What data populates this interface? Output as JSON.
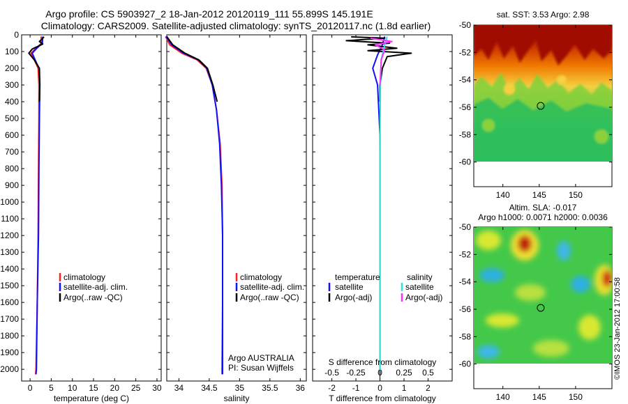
{
  "title_line1": "Argo profile: CS 5903927_2 18-Jan-2012 20120119_111 55.899S 145.191E",
  "title_line2": "Climatology: CARS2009. Satellite-adjusted climatology: synTS_20120117.nc (1.8d earlier)",
  "watermark": "©IMOS 23-Jan-2012 17:00:58",
  "colors": {
    "climatology": "#ff2020",
    "satellite": "#1010ff",
    "argo": "#000000",
    "sat_salinity": "#33e0e0",
    "argo_salinity": "#ff30ff"
  },
  "chart_data": [
    {
      "type": "line",
      "id": "temperature",
      "xlabel": "temperature (deg C)",
      "ylabel": "",
      "xlim": [
        -2,
        31
      ],
      "ylim": [
        2070,
        0
      ],
      "xticks": [
        0,
        5,
        10,
        15,
        20,
        25,
        30
      ],
      "yticks": [
        0,
        100,
        200,
        300,
        400,
        500,
        600,
        700,
        800,
        900,
        1000,
        1100,
        1200,
        1300,
        1400,
        1500,
        1600,
        1700,
        1800,
        1900,
        2000
      ],
      "legend": [
        "climatology",
        "satellite-adj. clim.",
        "Argo(..raw -QC)"
      ],
      "series": [
        {
          "name": "climatology",
          "color": "#ff2020",
          "points": [
            [
              2.6,
              10
            ],
            [
              2.7,
              50
            ],
            [
              1.4,
              80
            ],
            [
              0.2,
              110
            ],
            [
              1.0,
              150
            ],
            [
              1.9,
              200
            ],
            [
              2.1,
              300
            ],
            [
              2.1,
              500
            ],
            [
              2.0,
              800
            ],
            [
              1.9,
              1200
            ],
            [
              1.7,
              1600
            ],
            [
              1.4,
              2000
            ],
            [
              1.3,
              2030
            ]
          ]
        },
        {
          "name": "satellite-adj. clim.",
          "color": "#1010ff",
          "points": [
            [
              3.0,
              10
            ],
            [
              2.9,
              50
            ],
            [
              1.6,
              80
            ],
            [
              0.5,
              110
            ],
            [
              1.2,
              150
            ],
            [
              2.1,
              200
            ],
            [
              2.3,
              300
            ],
            [
              2.2,
              500
            ],
            [
              2.1,
              800
            ],
            [
              2.0,
              1200
            ],
            [
              1.7,
              1600
            ],
            [
              1.5,
              2000
            ],
            [
              1.4,
              2030
            ]
          ]
        },
        {
          "name": "Argo(..raw -QC)",
          "color": "#000000",
          "points": [
            [
              3.3,
              12
            ],
            [
              2.2,
              40
            ],
            [
              3.0,
              55
            ],
            [
              0.5,
              85
            ],
            [
              -0.3,
              110
            ],
            [
              1.0,
              150
            ],
            [
              2.2,
              200
            ],
            [
              2.3,
              300
            ],
            [
              2.2,
              400
            ]
          ]
        }
      ]
    },
    {
      "type": "line",
      "id": "salinity",
      "xlabel": "salinity",
      "ylabel": "",
      "xlim": [
        33.8,
        36.1
      ],
      "ylim": [
        2070,
        0
      ],
      "xticks": [
        34,
        34.5,
        35,
        35.5,
        36
      ],
      "legend": [
        "climatology",
        "satellite-adj. clim.",
        "Argo(..raw -QC)"
      ],
      "annotation": [
        "Argo AUSTRALIA",
        "PI: Susan Wijffels"
      ],
      "series": [
        {
          "name": "climatology",
          "color": "#ff2020",
          "points": [
            [
              33.78,
              10
            ],
            [
              33.85,
              60
            ],
            [
              34.05,
              110
            ],
            [
              34.3,
              150
            ],
            [
              34.45,
              200
            ],
            [
              34.55,
              300
            ],
            [
              34.62,
              450
            ],
            [
              34.68,
              650
            ],
            [
              34.71,
              900
            ],
            [
              34.72,
              1200
            ],
            [
              34.72,
              1600
            ],
            [
              34.71,
              2000
            ],
            [
              34.71,
              2030
            ]
          ]
        },
        {
          "name": "satellite-adj. clim.",
          "color": "#1010ff",
          "points": [
            [
              33.79,
              10
            ],
            [
              33.88,
              60
            ],
            [
              34.08,
              110
            ],
            [
              34.32,
              150
            ],
            [
              34.46,
              200
            ],
            [
              34.55,
              300
            ],
            [
              34.62,
              450
            ],
            [
              34.67,
              650
            ],
            [
              34.7,
              900
            ],
            [
              34.72,
              1200
            ],
            [
              34.72,
              1600
            ],
            [
              34.72,
              2000
            ],
            [
              34.72,
              2030
            ]
          ]
        },
        {
          "name": "Argo(..raw -QC)",
          "color": "#000000",
          "points": [
            [
              33.8,
              10
            ],
            [
              33.9,
              60
            ],
            [
              34.1,
              110
            ],
            [
              34.33,
              150
            ],
            [
              34.47,
              200
            ],
            [
              34.56,
              300
            ],
            [
              34.63,
              400
            ]
          ]
        }
      ]
    },
    {
      "type": "line",
      "id": "difference",
      "xlabel": "T difference from climatology",
      "xlabel2": "S difference from climatology",
      "xlim": [
        -2.8,
        3
      ],
      "ylim": [
        2070,
        0
      ],
      "xticks": [
        -2,
        -1,
        0,
        1,
        2
      ],
      "xticks2": [
        -0.5,
        -0.25,
        0,
        0.25,
        0.5
      ],
      "legend_temperature_title": "temperature",
      "legend_salinity_title": "salinity",
      "legend": [
        "satellite",
        "Argo(-adj)",
        "satellite",
        "Argo(-adj)"
      ],
      "series": [
        {
          "name": "satellite",
          "color": "#1010ff",
          "points": [
            [
              0.2,
              10
            ],
            [
              0.1,
              60
            ],
            [
              -0.1,
              120
            ],
            [
              -0.3,
              200
            ],
            [
              -0.1,
              300
            ],
            [
              0,
              600
            ],
            [
              0,
              1000
            ],
            [
              0,
              2030
            ]
          ]
        },
        {
          "name": "Argo(-adj)",
          "color": "#000000",
          "points": [
            [
              -1.2,
              12
            ],
            [
              0.2,
              20
            ],
            [
              -1.4,
              35
            ],
            [
              0.4,
              50
            ],
            [
              -0.5,
              60
            ],
            [
              0.7,
              80
            ],
            [
              -0.5,
              95
            ],
            [
              1.3,
              110
            ],
            [
              0.3,
              130
            ],
            [
              0.1,
              200
            ],
            [
              0,
              300
            ],
            [
              0,
              400
            ]
          ]
        },
        {
          "name": "satellite",
          "color": "#33e0e0",
          "points": [
            [
              0.3,
              10
            ],
            [
              0.2,
              60
            ],
            [
              0.05,
              150
            ],
            [
              0.02,
              300
            ],
            [
              0,
              700
            ],
            [
              0,
              2030
            ]
          ]
        },
        {
          "name": "Argo(-adj)",
          "color": "#ff30ff",
          "points": [
            [
              -0.4,
              20
            ],
            [
              0.5,
              40
            ],
            [
              -0.2,
              60
            ],
            [
              0.2,
              90
            ],
            [
              0.05,
              150
            ],
            [
              0,
              300
            ]
          ]
        }
      ]
    },
    {
      "type": "heatmap",
      "id": "sst_map",
      "title": "sat. SST: 3.53 Argo: 2.98",
      "xlim": [
        136,
        155
      ],
      "ylim": [
        -61.8,
        -50
      ],
      "xticks": [
        140,
        145,
        150
      ],
      "yticks": [
        -50,
        -52,
        -54,
        -56,
        -58,
        -60
      ],
      "marker": [
        145.2,
        -55.9
      ]
    },
    {
      "type": "heatmap",
      "id": "sla_map",
      "title": "Altim. SLA: -0.017",
      "subtitle": "Argo h1000: 0.0071 h2000: 0.0036",
      "xlim": [
        136,
        155
      ],
      "ylim": [
        -61.8,
        -50
      ],
      "xticks": [
        140,
        145,
        150
      ],
      "yticks": [
        -50,
        -52,
        -54,
        -56,
        -58,
        -60
      ],
      "marker": [
        145.2,
        -55.9
      ]
    }
  ]
}
